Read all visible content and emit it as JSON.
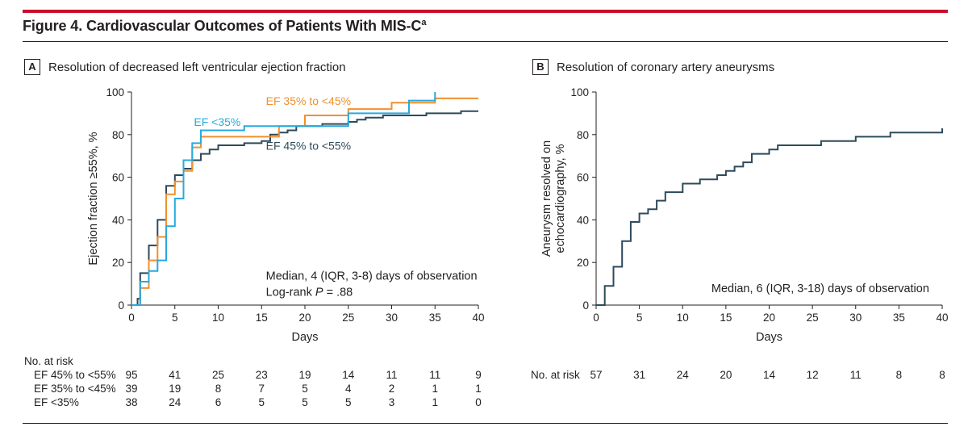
{
  "figure": {
    "title": "Figure 4. Cardiovascular Outcomes of Patients With MIS-C",
    "title_footnote": "a"
  },
  "colors": {
    "accent_rule": "#c8102e",
    "ef_45_55": "#2e4a5b",
    "ef_35_45": "#f0902e",
    "ef_lt35": "#29a9de",
    "aneurysm": "#2e4a5b"
  },
  "chart_data": [
    {
      "panel": "A",
      "type": "line",
      "step": true,
      "title": "Resolution of decreased left ventricular ejection fraction",
      "xlabel": "Days",
      "ylabel": "Ejection fraction ≥55%, %",
      "xlim": [
        0,
        40
      ],
      "ylim": [
        0,
        100
      ],
      "xticks": [
        0,
        5,
        10,
        15,
        20,
        25,
        30,
        35,
        40
      ],
      "yticks": [
        0,
        20,
        40,
        60,
        80,
        100
      ],
      "annotation_lines": [
        "Median, 4 (IQR, 3-8) days of observation",
        "Log-rank P = .88"
      ],
      "series": [
        {
          "name": "EF 45% to <55%",
          "color": "#2e4a5b",
          "label_pos": [
            15.5,
            73
          ],
          "points": [
            [
              0,
              0
            ],
            [
              0.7,
              0
            ],
            [
              0.7,
              3
            ],
            [
              1,
              3
            ],
            [
              1,
              15
            ],
            [
              2,
              15
            ],
            [
              2,
              28
            ],
            [
              3,
              28
            ],
            [
              3,
              40
            ],
            [
              4,
              40
            ],
            [
              4,
              56
            ],
            [
              5,
              56
            ],
            [
              5,
              61
            ],
            [
              6,
              61
            ],
            [
              6,
              64
            ],
            [
              7,
              64
            ],
            [
              7,
              68
            ],
            [
              8,
              68
            ],
            [
              8,
              71
            ],
            [
              9,
              71
            ],
            [
              9,
              73
            ],
            [
              10,
              73
            ],
            [
              10,
              75
            ],
            [
              13,
              75
            ],
            [
              13,
              76
            ],
            [
              15,
              76
            ],
            [
              15,
              77
            ],
            [
              16,
              77
            ],
            [
              16,
              80
            ],
            [
              17,
              80
            ],
            [
              17,
              81
            ],
            [
              18,
              81
            ],
            [
              18,
              82
            ],
            [
              19,
              82
            ],
            [
              19,
              84
            ],
            [
              22,
              84
            ],
            [
              22,
              85
            ],
            [
              25,
              85
            ],
            [
              25,
              86
            ],
            [
              26,
              86
            ],
            [
              26,
              87
            ],
            [
              27,
              87
            ],
            [
              27,
              88
            ],
            [
              29,
              88
            ],
            [
              29,
              89
            ],
            [
              34,
              89
            ],
            [
              34,
              90
            ],
            [
              38,
              90
            ],
            [
              38,
              91
            ],
            [
              40,
              91
            ]
          ]
        },
        {
          "name": "EF 35% to <45%",
          "color": "#f0902e",
          "label_pos": [
            15.5,
            94
          ],
          "points": [
            [
              0,
              0
            ],
            [
              1,
              0
            ],
            [
              1,
              8
            ],
            [
              2,
              8
            ],
            [
              2,
              21
            ],
            [
              3,
              21
            ],
            [
              3,
              32
            ],
            [
              4,
              32
            ],
            [
              4,
              52
            ],
            [
              5,
              52
            ],
            [
              5,
              58
            ],
            [
              6,
              58
            ],
            [
              6,
              63
            ],
            [
              7,
              63
            ],
            [
              7,
              74
            ],
            [
              8,
              74
            ],
            [
              8,
              79
            ],
            [
              17,
              79
            ],
            [
              17,
              84
            ],
            [
              20,
              84
            ],
            [
              20,
              89
            ],
            [
              25,
              89
            ],
            [
              25,
              92
            ],
            [
              30,
              92
            ],
            [
              30,
              95
            ],
            [
              35,
              95
            ],
            [
              35,
              97
            ],
            [
              40,
              97
            ]
          ]
        },
        {
          "name": "EF <35%",
          "color": "#29a9de",
          "label_pos": [
            7.2,
            84
          ],
          "points": [
            [
              0,
              0
            ],
            [
              1,
              0
            ],
            [
              1,
              11
            ],
            [
              2,
              11
            ],
            [
              2,
              16
            ],
            [
              3,
              16
            ],
            [
              3,
              21
            ],
            [
              4,
              21
            ],
            [
              4,
              37
            ],
            [
              5,
              37
            ],
            [
              5,
              50
            ],
            [
              6,
              50
            ],
            [
              6,
              68
            ],
            [
              7,
              68
            ],
            [
              7,
              76
            ],
            [
              8,
              76
            ],
            [
              8,
              82
            ],
            [
              13,
              82
            ],
            [
              13,
              84
            ],
            [
              25,
              84
            ],
            [
              25,
              90
            ],
            [
              32,
              90
            ],
            [
              32,
              96
            ],
            [
              35,
              96
            ],
            [
              35,
              100
            ]
          ]
        }
      ],
      "risk_table": {
        "header": "No. at risk",
        "rows": [
          {
            "label": "EF 45% to <55%",
            "values": [
              "95",
              "41",
              "25",
              "23",
              "19",
              "14",
              "11",
              "11",
              "9"
            ]
          },
          {
            "label": "EF 35% to <45%",
            "values": [
              "39",
              "19",
              "8",
              "7",
              "5",
              "4",
              "2",
              "1",
              "1"
            ]
          },
          {
            "label": "EF <35%",
            "values": [
              "38",
              "24",
              "6",
              "5",
              "5",
              "5",
              "3",
              "1",
              "0"
            ]
          }
        ]
      }
    },
    {
      "panel": "B",
      "type": "line",
      "step": true,
      "title": "Resolution of coronary artery aneurysms",
      "xlabel": "Days",
      "ylabel": [
        "Aneurysm resolved on",
        "echocardiography, %"
      ],
      "xlim": [
        0,
        40
      ],
      "ylim": [
        0,
        100
      ],
      "xticks": [
        0,
        5,
        10,
        15,
        20,
        25,
        30,
        35,
        40
      ],
      "yticks": [
        0,
        20,
        40,
        60,
        80,
        100
      ],
      "annotation_lines": [
        "Median, 6 (IQR, 3-18) days of observation"
      ],
      "series": [
        {
          "color": "#2e4a5b",
          "points": [
            [
              0,
              0
            ],
            [
              1,
              0
            ],
            [
              1,
              9
            ],
            [
              2,
              9
            ],
            [
              2,
              18
            ],
            [
              3,
              18
            ],
            [
              3,
              30
            ],
            [
              4,
              30
            ],
            [
              4,
              39
            ],
            [
              5,
              39
            ],
            [
              5,
              43
            ],
            [
              6,
              43
            ],
            [
              6,
              45
            ],
            [
              7,
              45
            ],
            [
              7,
              49
            ],
            [
              8,
              49
            ],
            [
              8,
              53
            ],
            [
              10,
              53
            ],
            [
              10,
              57
            ],
            [
              12,
              57
            ],
            [
              12,
              59
            ],
            [
              14,
              59
            ],
            [
              14,
              61
            ],
            [
              15,
              61
            ],
            [
              15,
              63
            ],
            [
              16,
              63
            ],
            [
              16,
              65
            ],
            [
              17,
              65
            ],
            [
              17,
              67
            ],
            [
              18,
              67
            ],
            [
              18,
              71
            ],
            [
              20,
              71
            ],
            [
              20,
              73
            ],
            [
              21,
              73
            ],
            [
              21,
              75
            ],
            [
              26,
              75
            ],
            [
              26,
              77
            ],
            [
              30,
              77
            ],
            [
              30,
              79
            ],
            [
              34,
              79
            ],
            [
              34,
              81
            ],
            [
              40,
              81
            ],
            [
              40,
              83
            ]
          ]
        }
      ],
      "risk_table": {
        "header": "No. at risk",
        "values": [
          "57",
          "31",
          "24",
          "20",
          "14",
          "12",
          "11",
          "8",
          "8"
        ]
      }
    }
  ]
}
